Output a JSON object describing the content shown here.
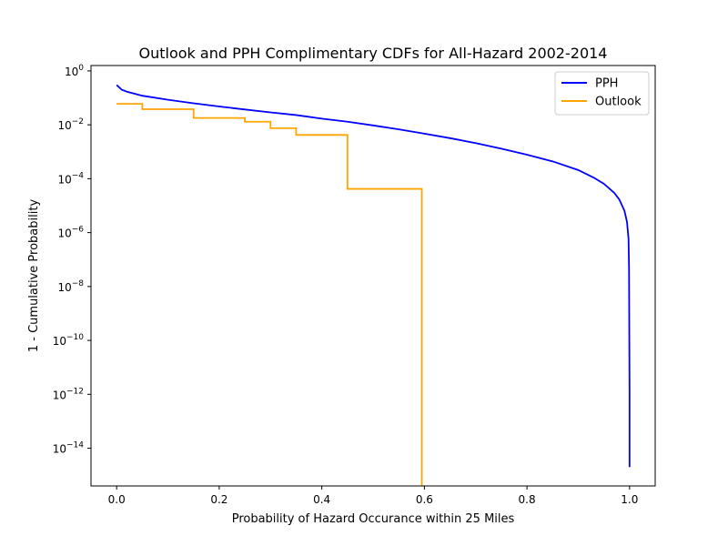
{
  "chart_data": {
    "type": "line",
    "title": "Outlook and PPH Complimentary CDFs for All-Hazard 2002-2014",
    "xlabel": "Probability of Hazard Occurance within 25 Miles",
    "ylabel": "1 - Cumulative Probability",
    "xlim": [
      -0.05,
      1.05
    ],
    "ylim_log10": [
      -15.4,
      0.2
    ],
    "y_scale": "log",
    "grid": false,
    "legend_position": "upper-right",
    "x_ticks": [
      {
        "value": 0.0,
        "label": "0.0"
      },
      {
        "value": 0.2,
        "label": "0.2"
      },
      {
        "value": 0.4,
        "label": "0.4"
      },
      {
        "value": 0.6,
        "label": "0.6"
      },
      {
        "value": 0.8,
        "label": "0.8"
      },
      {
        "value": 1.0,
        "label": "1.0"
      }
    ],
    "y_ticks": [
      {
        "exp": 0,
        "base": "10",
        "sup": "0"
      },
      {
        "exp": -2,
        "base": "10",
        "sup": "−2"
      },
      {
        "exp": -4,
        "base": "10",
        "sup": "−4"
      },
      {
        "exp": -6,
        "base": "10",
        "sup": "−6"
      },
      {
        "exp": -8,
        "base": "10",
        "sup": "−8"
      },
      {
        "exp": -10,
        "base": "10",
        "sup": "−10"
      },
      {
        "exp": -12,
        "base": "10",
        "sup": "−12"
      },
      {
        "exp": -14,
        "base": "10",
        "sup": "−14"
      }
    ],
    "series": [
      {
        "name": "PPH",
        "color": "#0000ff",
        "x": [
          0.0,
          0.01,
          0.02,
          0.05,
          0.1,
          0.15,
          0.2,
          0.25,
          0.3,
          0.35,
          0.4,
          0.45,
          0.5,
          0.55,
          0.6,
          0.65,
          0.7,
          0.75,
          0.8,
          0.85,
          0.9,
          0.93,
          0.95,
          0.97,
          0.98,
          0.99,
          0.995,
          0.998,
          0.999,
          1.0,
          1.0
        ],
        "y": [
          0.3,
          0.2,
          0.17,
          0.12,
          0.085,
          0.063,
          0.048,
          0.037,
          0.029,
          0.023,
          0.017,
          0.013,
          0.0095,
          0.0068,
          0.0047,
          0.0032,
          0.0021,
          0.0013,
          0.00078,
          0.00044,
          0.00021,
          0.00011,
          6.5e-05,
          3e-05,
          1.7e-05,
          6.5e-06,
          2.5e-06,
          6e-07,
          5e-08,
          1e-12,
          2e-15
        ]
      },
      {
        "name": "Outlook",
        "color": "#ffa500",
        "step": true,
        "x": [
          0.0,
          0.05,
          0.05,
          0.15,
          0.15,
          0.25,
          0.25,
          0.3,
          0.3,
          0.35,
          0.35,
          0.45,
          0.45,
          0.595,
          0.595
        ],
        "y": [
          0.06,
          0.06,
          0.038,
          0.038,
          0.018,
          0.018,
          0.013,
          0.013,
          0.0075,
          0.0075,
          0.0042,
          0.0042,
          4.2e-05,
          4.2e-05,
          1e-16
        ]
      }
    ]
  }
}
